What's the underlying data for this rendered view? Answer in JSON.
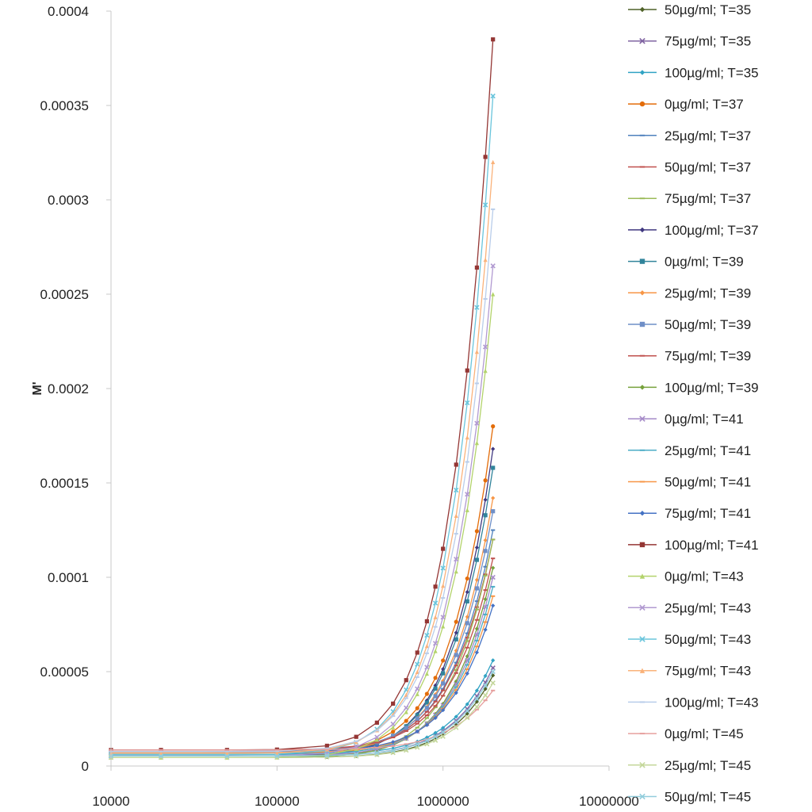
{
  "chart_data": {
    "type": "line",
    "title": "",
    "xlabel": "",
    "ylabel": "M'",
    "xscale": "log",
    "xlim": [
      10000,
      10000000
    ],
    "ylim": [
      0,
      0.0004
    ],
    "x_ticks": [
      "10000",
      "100000",
      "1000000",
      "10000000"
    ],
    "y_ticks": [
      "0",
      "0.00005",
      "0.0001",
      "0.00015",
      "0.0002",
      "0.00025",
      "0.0003",
      "0.00035",
      "0.0004"
    ],
    "grid": false,
    "legend_position": "right",
    "x": [
      10000,
      20000,
      50000,
      100000,
      200000,
      300000,
      400000,
      500000,
      600000,
      700000,
      800000,
      900000,
      1000000,
      1200000,
      1400000,
      1600000,
      1800000,
      2000000
    ],
    "series": [
      {
        "name": "50µg/ml; T=35",
        "color": "#4f6228",
        "marker": "diamond",
        "final": 4.8e-05
      },
      {
        "name": "75µg/ml; T=35",
        "color": "#8064a2",
        "marker": "x",
        "final": 5.2e-05
      },
      {
        "name": "100µg/ml; T=35",
        "color": "#31a3c4",
        "marker": "diamond",
        "final": 5.6e-05
      },
      {
        "name": "0µg/ml; T=37",
        "color": "#e36c09",
        "marker": "circle",
        "final": 0.00018
      },
      {
        "name": "25µg/ml; T=37",
        "color": "#4f81bd",
        "marker": "dash",
        "final": 0.000125
      },
      {
        "name": "50µg/ml; T=37",
        "color": "#c0504d",
        "marker": "dash",
        "final": 0.00012
      },
      {
        "name": "75µg/ml; T=37",
        "color": "#9bbb59",
        "marker": "dash",
        "final": 0.00012
      },
      {
        "name": "100µg/ml; T=37",
        "color": "#403880",
        "marker": "diamond",
        "final": 0.000168
      },
      {
        "name": "0µg/ml; T=39",
        "color": "#31849b",
        "marker": "square",
        "final": 0.000158
      },
      {
        "name": "25µg/ml; T=39",
        "color": "#f79646",
        "marker": "diamond",
        "final": 0.000142
      },
      {
        "name": "50µg/ml; T=39",
        "color": "#6f8fc7",
        "marker": "square",
        "final": 0.000135
      },
      {
        "name": "75µg/ml; T=39",
        "color": "#c0504d",
        "marker": "dash",
        "final": 0.00011
      },
      {
        "name": "100µg/ml; T=39",
        "color": "#76a13b",
        "marker": "diamond",
        "final": 0.000105
      },
      {
        "name": "0µg/ml; T=41",
        "color": "#a58ac8",
        "marker": "x",
        "final": 0.0001
      },
      {
        "name": "25µg/ml; T=41",
        "color": "#4bacc6",
        "marker": "dash",
        "final": 9.5e-05
      },
      {
        "name": "50µg/ml; T=41",
        "color": "#f79646",
        "marker": "dash",
        "final": 9e-05
      },
      {
        "name": "75µg/ml; T=41",
        "color": "#4472c4",
        "marker": "diamond",
        "final": 8.5e-05
      },
      {
        "name": "100µg/ml; T=41",
        "color": "#943634",
        "marker": "square",
        "final": 0.000385
      },
      {
        "name": "0µg/ml; T=43",
        "color": "#b3d36b",
        "marker": "triangle",
        "final": 0.00025
      },
      {
        "name": "25µg/ml; T=43",
        "color": "#b19ad1",
        "marker": "x",
        "final": 0.000265
      },
      {
        "name": "50µg/ml; T=43",
        "color": "#6ac5dc",
        "marker": "x",
        "final": 0.000355
      },
      {
        "name": "75µg/ml; T=43",
        "color": "#fab27a",
        "marker": "triangle",
        "final": 0.00032
      },
      {
        "name": "100µg/ml; T=43",
        "color": "#b9cdea",
        "marker": "dash",
        "final": 0.000295
      },
      {
        "name": "0µg/ml; T=45",
        "color": "#e6a09e",
        "marker": "dash",
        "final": 4e-05
      },
      {
        "name": "25µg/ml; T=45",
        "color": "#c4d79b",
        "marker": "x",
        "final": 4.4e-05
      },
      {
        "name": "50µg/ml; T=45",
        "color": "#92cddc",
        "marker": "x",
        "final": 5e-05
      }
    ]
  }
}
